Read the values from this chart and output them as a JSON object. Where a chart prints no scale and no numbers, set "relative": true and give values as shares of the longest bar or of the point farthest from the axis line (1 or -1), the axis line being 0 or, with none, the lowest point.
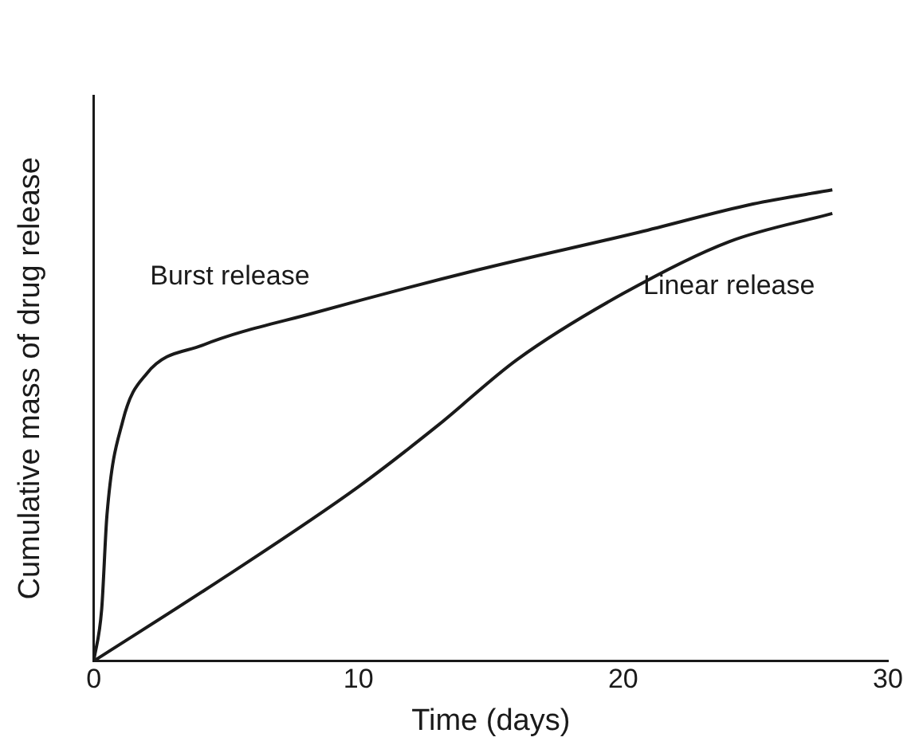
{
  "chart_data": {
    "type": "line",
    "xlabel": "Time (days)",
    "ylabel": "Cumulative mass of drug release",
    "relative": true,
    "xlim": [
      0,
      30
    ],
    "xticks": [
      0,
      10,
      20,
      30
    ],
    "grid": false,
    "legend": false,
    "marker": "none",
    "line_style": "solid",
    "series": [
      {
        "name": "Burst release",
        "color": "#1a1a1a",
        "x": [
          0,
          0.3,
          0.5,
          1.1,
          2,
          4.1,
          8.4,
          14.5,
          20.6,
          24.9,
          27.9
        ],
        "values": [
          0,
          0.11,
          0.31,
          0.51,
          0.61,
          0.67,
          0.74,
          0.83,
          0.91,
          0.97,
          1
        ]
      },
      {
        "name": "Linear release",
        "color": "#1a1a1a",
        "x": [
          0,
          5,
          10,
          13,
          16,
          20,
          24,
          27.9
        ],
        "values": [
          0,
          0.18,
          0.37,
          0.5,
          0.64,
          0.78,
          0.89,
          0.95
        ]
      }
    ]
  }
}
